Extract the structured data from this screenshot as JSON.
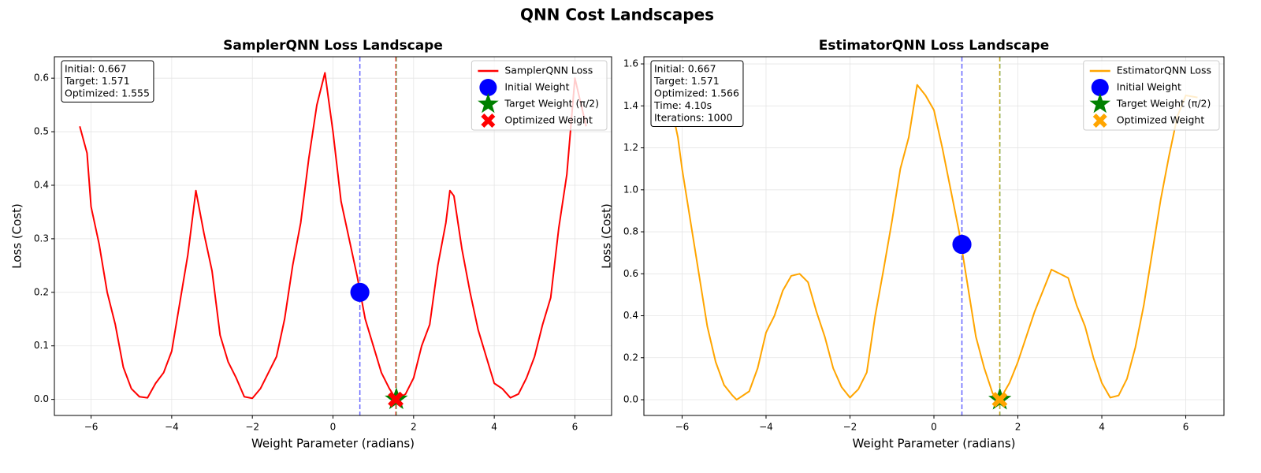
{
  "title": "QNN Cost Landscapes",
  "chart_data": [
    {
      "type": "line",
      "title": "SamplerQNN Loss Landscape",
      "xlabel": "Weight Parameter (radians)",
      "ylabel": "Loss (Cost)",
      "x": [
        -6.28,
        -6.1,
        -6.0,
        -5.8,
        -5.6,
        -5.4,
        -5.2,
        -5.0,
        -4.8,
        -4.6,
        -4.4,
        -4.2,
        -4.0,
        -3.8,
        -3.6,
        -3.4,
        -3.2,
        -3.0,
        -2.8,
        -2.6,
        -2.4,
        -2.2,
        -2.0,
        -1.8,
        -1.6,
        -1.4,
        -1.2,
        -1.0,
        -0.8,
        -0.6,
        -0.4,
        -0.2,
        0.0,
        0.2,
        0.4,
        0.6,
        0.8,
        1.0,
        1.2,
        1.4,
        1.57,
        1.8,
        2.0,
        2.2,
        2.4,
        2.6,
        2.8,
        2.9,
        3.0,
        3.2,
        3.4,
        3.6,
        3.8,
        4.0,
        4.2,
        4.4,
        4.6,
        4.8,
        5.0,
        5.2,
        5.4,
        5.6,
        5.8,
        6.0,
        6.28
      ],
      "series": [
        {
          "name": "SamplerQNN Loss",
          "color": "#ff0000",
          "values": [
            0.51,
            0.46,
            0.36,
            0.29,
            0.2,
            0.14,
            0.06,
            0.02,
            0.005,
            0.003,
            0.03,
            0.05,
            0.09,
            0.18,
            0.27,
            0.39,
            0.31,
            0.24,
            0.12,
            0.07,
            0.04,
            0.005,
            0.002,
            0.02,
            0.05,
            0.08,
            0.15,
            0.25,
            0.33,
            0.45,
            0.55,
            0.61,
            0.5,
            0.37,
            0.3,
            0.23,
            0.15,
            0.1,
            0.05,
            0.02,
            0.0,
            0.01,
            0.04,
            0.1,
            0.14,
            0.25,
            0.33,
            0.39,
            0.38,
            0.28,
            0.2,
            0.13,
            0.08,
            0.03,
            0.02,
            0.003,
            0.01,
            0.04,
            0.08,
            0.14,
            0.19,
            0.32,
            0.42,
            0.6,
            0.51
          ]
        }
      ],
      "points": [
        {
          "name": "Initial Weight",
          "color": "#0000ff",
          "marker": "circle",
          "x": 0.667,
          "y": 0.2
        },
        {
          "name": "Target Weight (π/2)",
          "color": "#008000",
          "marker": "star",
          "x": 1.571,
          "y": 0.0
        },
        {
          "name": "Optimized Weight",
          "color": "#ff0000",
          "marker": "x",
          "x": 1.555,
          "y": 0.0
        }
      ],
      "annotation": [
        "Initial: 0.667",
        "Target: 1.571",
        "Optimized: 1.555"
      ],
      "xlim": [
        -6.91,
        6.91
      ],
      "ylim": [
        -0.03,
        0.64
      ],
      "xticks": [
        {
          "value": -6,
          "label": "−6"
        },
        {
          "value": -4,
          "label": "−4"
        },
        {
          "value": -2,
          "label": "−2"
        },
        0,
        2,
        4,
        6
      ],
      "yticks": [
        {
          "value": 0,
          "label": "0.0"
        },
        0.1,
        0.2,
        0.3,
        0.4,
        0.5,
        0.6
      ],
      "grid": true,
      "legend": "upper right"
    },
    {
      "type": "line",
      "title": "EstimatorQNN Loss Landscape",
      "xlabel": "Weight Parameter (radians)",
      "ylabel": "Loss (Cost)",
      "x": [
        -6.28,
        -6.1,
        -6.0,
        -5.8,
        -5.6,
        -5.4,
        -5.2,
        -5.0,
        -4.8,
        -4.7,
        -4.4,
        -4.2,
        -4.0,
        -3.8,
        -3.6,
        -3.4,
        -3.2,
        -3.0,
        -2.8,
        -2.6,
        -2.4,
        -2.2,
        -2.0,
        -1.8,
        -1.6,
        -1.4,
        -1.2,
        -1.0,
        -0.8,
        -0.6,
        -0.4,
        -0.2,
        0.0,
        0.2,
        0.4,
        0.6,
        0.8,
        1.0,
        1.2,
        1.4,
        1.57,
        1.8,
        2.0,
        2.2,
        2.4,
        2.6,
        2.8,
        3.0,
        3.2,
        3.4,
        3.6,
        3.8,
        4.0,
        4.2,
        4.4,
        4.6,
        4.8,
        5.0,
        5.2,
        5.4,
        5.6,
        5.8,
        6.0,
        6.28
      ],
      "series": [
        {
          "name": "EstimatorQNN Loss",
          "color": "#ffa500",
          "values": [
            1.42,
            1.25,
            1.1,
            0.85,
            0.6,
            0.35,
            0.18,
            0.07,
            0.02,
            0.0,
            0.04,
            0.15,
            0.32,
            0.4,
            0.52,
            0.59,
            0.6,
            0.56,
            0.42,
            0.3,
            0.15,
            0.06,
            0.01,
            0.05,
            0.13,
            0.4,
            0.62,
            0.85,
            1.1,
            1.25,
            1.5,
            1.45,
            1.38,
            1.2,
            1.0,
            0.8,
            0.55,
            0.3,
            0.15,
            0.03,
            0.0,
            0.08,
            0.18,
            0.3,
            0.42,
            0.52,
            0.62,
            0.6,
            0.58,
            0.45,
            0.35,
            0.2,
            0.08,
            0.01,
            0.02,
            0.1,
            0.25,
            0.45,
            0.7,
            0.95,
            1.16,
            1.35,
            1.45,
            1.44
          ]
        }
      ],
      "points": [
        {
          "name": "Initial Weight",
          "color": "#0000ff",
          "marker": "circle",
          "x": 0.667,
          "y": 0.74
        },
        {
          "name": "Target Weight (π/2)",
          "color": "#008000",
          "marker": "star",
          "x": 1.571,
          "y": 0.0
        },
        {
          "name": "Optimized Weight",
          "color": "#ffa500",
          "marker": "x",
          "x": 1.566,
          "y": 0.0
        }
      ],
      "annotation": [
        "Initial: 0.667",
        "Target: 1.571",
        "Optimized: 1.566",
        "Time: 4.10s",
        "Iterations: 1000"
      ],
      "xlim": [
        -6.91,
        6.91
      ],
      "ylim": [
        -0.075,
        1.634
      ],
      "xticks": [
        {
          "value": -6,
          "label": "−6"
        },
        {
          "value": -4,
          "label": "−4"
        },
        {
          "value": -2,
          "label": "−2"
        },
        0,
        2,
        4,
        6
      ],
      "yticks": [
        {
          "value": 0,
          "label": "0.0"
        },
        0.2,
        0.4,
        0.6,
        0.8,
        {
          "value": 1,
          "label": "1.0"
        },
        1.2,
        1.4,
        1.6
      ],
      "grid": true,
      "legend": "upper right"
    }
  ]
}
